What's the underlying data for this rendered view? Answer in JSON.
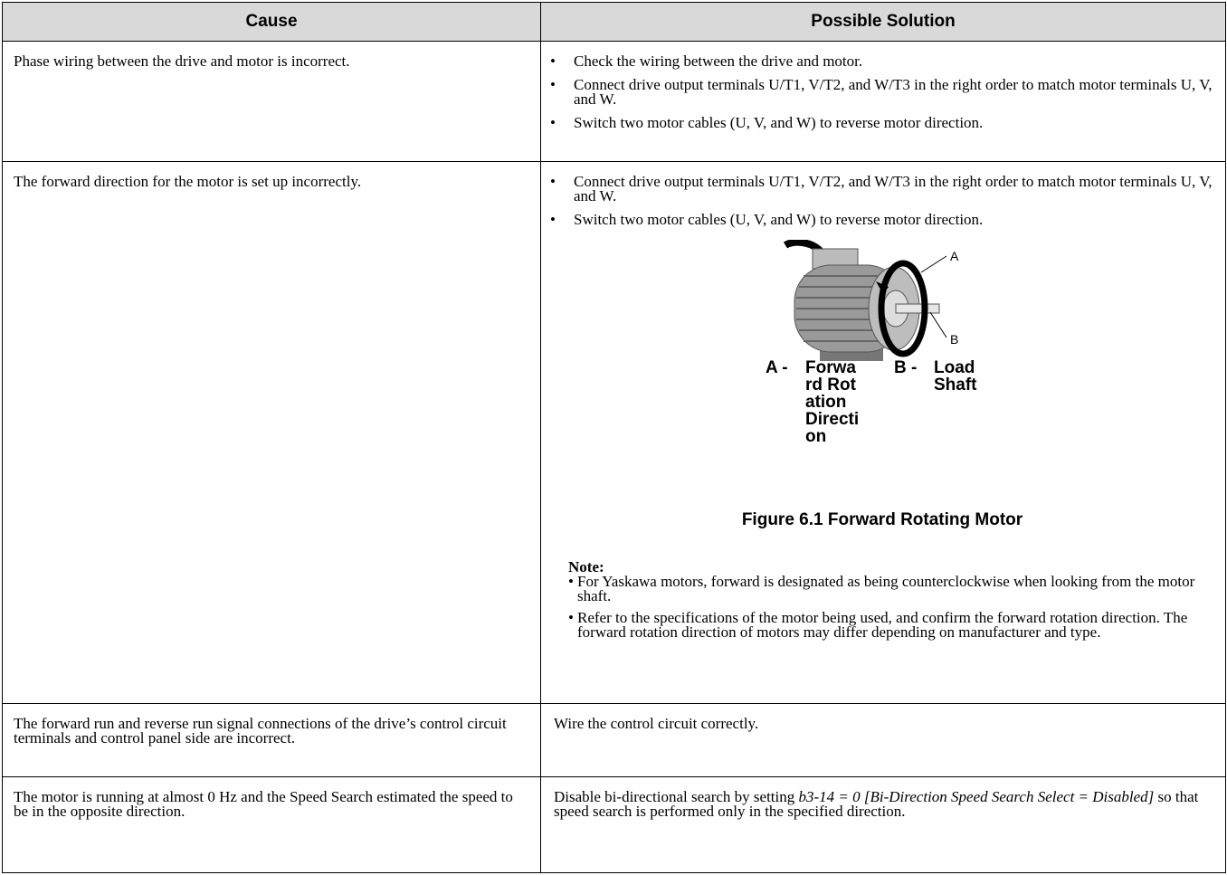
{
  "table": {
    "header": [
      "Cause",
      "Possible Solution"
    ],
    "rows": [
      {
        "cause": "Phase wiring between the drive and motor is incorrect.",
        "solutions": [
          "Check the wiring between the drive and motor.",
          "Connect drive output terminals U/T1, V/T2, and W/T3 in the right order to match motor terminals U, V, and W.",
          "Switch two motor cables (U, V, and W) to reverse motor direction."
        ]
      },
      {
        "cause": "The forward direction for the motor is set up incorrectly.",
        "solutions": [
          "Connect drive output terminals U/T1, V/T2, and W/T3 in the right order to match motor terminals U, V, and W.",
          "Switch two motor cables (U, V, and W) to reverse motor direction."
        ],
        "figure": {
          "callouts": [
            "A",
            "B"
          ],
          "legend": [
            {
              "key": "A -",
              "label": "Forward Rotation Direction"
            },
            {
              "key": "B -",
              "label": "Load Shaft"
            }
          ],
          "caption": "Figure 6.1  Forward Rotating Motor"
        },
        "note": {
          "title": "Note:",
          "items": [
            "For Yaskawa motors, forward is designated as being counterclockwise when looking from the motor shaft.",
            "Refer to the specifications of the motor being used, and confirm the forward rotation direction. The forward rotation direction of motors may differ depending on manufacturer and type."
          ]
        }
      },
      {
        "cause": "The forward run and reverse run signal connections of the drive’s control circuit terminals and control panel side are incorrect.",
        "solution": "Wire the control circuit correctly."
      },
      {
        "cause": "The motor is running at almost 0 Hz and the Speed Search estimated the speed to be in the opposite direction.",
        "solution_parts": [
          "Disable bi-directional search by setting ",
          "b3-14 = 0 [Bi-Direction Speed Search Select = Disabled]",
          " so that speed search is performed only in the specified direction."
        ]
      }
    ]
  }
}
